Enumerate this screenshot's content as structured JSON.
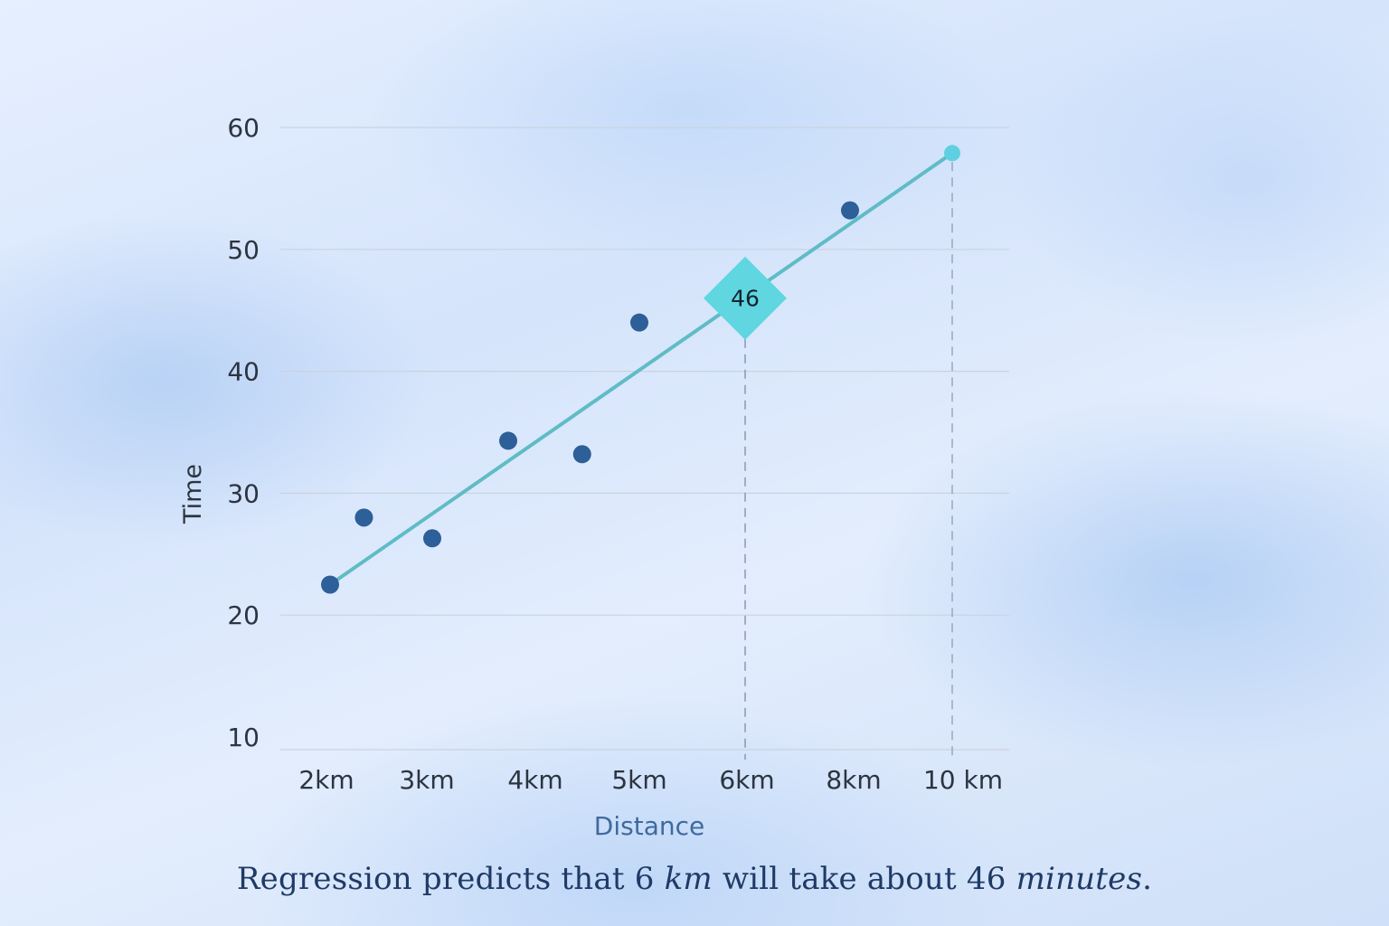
{
  "chart_data": {
    "type": "scatter",
    "xlabel": "Distance",
    "ylabel": "Time",
    "y_ticks": [
      "60",
      "50",
      "40",
      "30",
      "20",
      "10"
    ],
    "x_ticks": [
      "2km",
      "3km",
      "4km",
      "5km",
      "6km",
      "8km",
      "10 km"
    ],
    "points": [
      {
        "x": 2.0,
        "y": 22.5
      },
      {
        "x": 2.35,
        "y": 28.0
      },
      {
        "x": 3.05,
        "y": 26.3
      },
      {
        "x": 3.75,
        "y": 34.3
      },
      {
        "x": 4.45,
        "y": 33.2
      },
      {
        "x": 5.0,
        "y": 44.0
      },
      {
        "x": 8.0,
        "y": 53.2
      }
    ],
    "regression_line": {
      "x_start": 2,
      "y_start": 22.5,
      "x_end": 10,
      "y_end": 57.9
    },
    "prediction": {
      "x": 6,
      "y": 46,
      "label": "46"
    },
    "ylim": [
      10,
      60
    ],
    "grid": true,
    "colors": {
      "points": "#2d5f98",
      "line": "#5fbcc6",
      "diamond": "#5fd6e0",
      "endpoint": "#5fd0e0",
      "grid": "#c9d3df"
    }
  },
  "caption": {
    "part1": "Regression predicts that 6 ",
    "unit1": "km",
    "part2": " will take about 46 ",
    "unit2": "minutes",
    "part3": "."
  }
}
